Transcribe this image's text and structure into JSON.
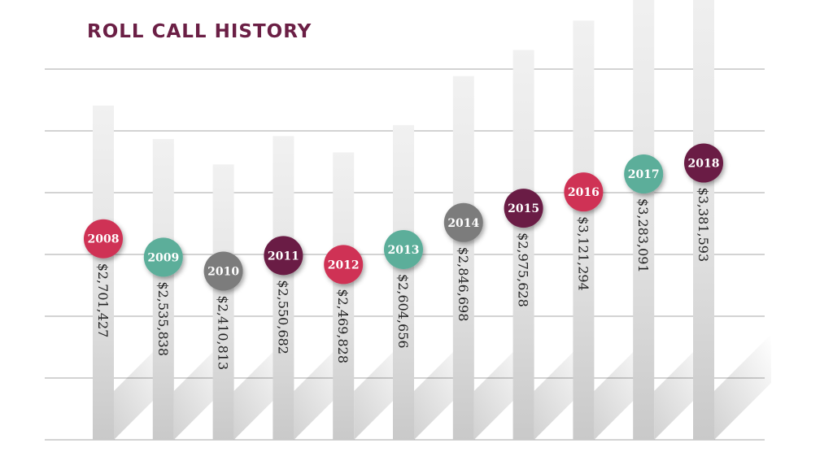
{
  "title": "ROLL CALL HISTORY",
  "colors": {
    "crimson": "#cf3354",
    "teal": "#5cae9a",
    "gray": "#7b7b7b",
    "plum": "#6b1f45",
    "title": "#6b1f45",
    "gridline": "#b9b9b9",
    "bar": "#d6d6d6"
  },
  "chart_data": {
    "type": "bar",
    "title": "ROLL CALL HISTORY",
    "categories": [
      "2008",
      "2009",
      "2010",
      "2011",
      "2012",
      "2013",
      "2014",
      "2015",
      "2016",
      "2017",
      "2018"
    ],
    "values": [
      2701427,
      2535838,
      2410813,
      2550682,
      2469828,
      2604656,
      2846698,
      2975628,
      3121294,
      3283091,
      3381593
    ],
    "value_labels": [
      "$2,701,427",
      "$2,535,838",
      "$2,410,813",
      "$2,550,682",
      "$2,469,828",
      "$2,604,656",
      "$2,846,698",
      "$2,975,628",
      "$3,121,294",
      "$3,283,091",
      "$3,381,593"
    ],
    "marker_colors": [
      "crimson",
      "teal",
      "gray",
      "plum",
      "crimson",
      "teal",
      "gray",
      "plum",
      "crimson",
      "teal",
      "plum"
    ],
    "xlabel": "",
    "ylabel": "",
    "grid": true
  }
}
